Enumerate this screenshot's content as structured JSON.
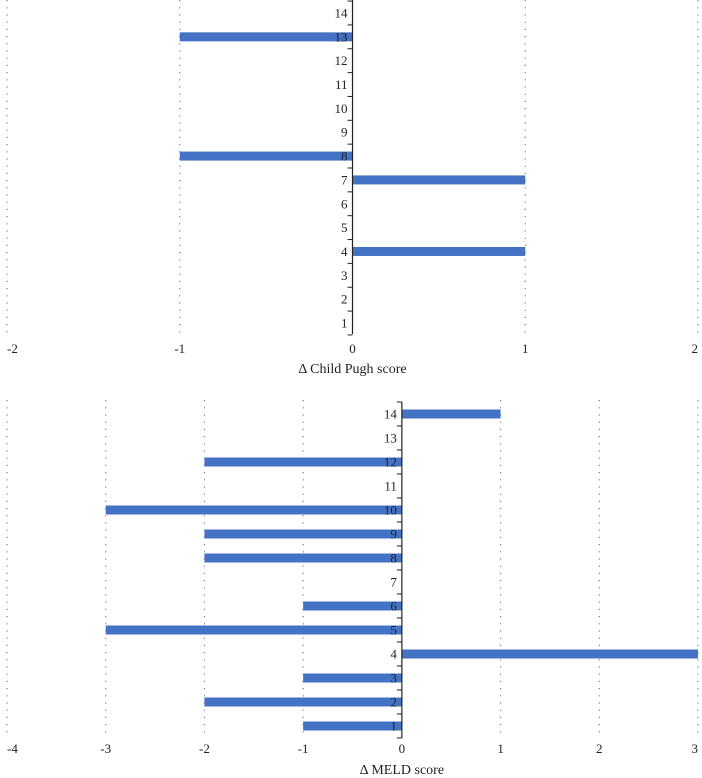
{
  "chart_data": [
    {
      "type": "bar",
      "orientation": "horizontal",
      "title": "",
      "xlabel": "Δ Child Pugh score",
      "ylabel": "",
      "xlim": [
        -2,
        2
      ],
      "x_ticks": [
        -2,
        -1,
        0,
        1,
        2
      ],
      "categories": [
        1,
        2,
        3,
        4,
        5,
        6,
        7,
        8,
        9,
        10,
        11,
        12,
        13,
        14
      ],
      "values": [
        0,
        0,
        0,
        1,
        0,
        0,
        1,
        -1,
        0,
        0,
        0,
        0,
        -1,
        0
      ],
      "grid": "vertical-dotted",
      "legend": "none",
      "bar_color": "#4472C4"
    },
    {
      "type": "bar",
      "orientation": "horizontal",
      "title": "",
      "xlabel": "Δ MELD score",
      "ylabel": "",
      "xlim": [
        -4,
        3
      ],
      "x_ticks": [
        -4,
        -3,
        -2,
        -1,
        0,
        1,
        2,
        3
      ],
      "categories": [
        1,
        2,
        3,
        4,
        5,
        6,
        7,
        8,
        9,
        10,
        11,
        12,
        13,
        14
      ],
      "values": [
        -1,
        -2,
        -1,
        3,
        -3,
        -1,
        0,
        -2,
        -2,
        -3,
        0,
        -2,
        0,
        1
      ],
      "grid": "vertical-dotted",
      "legend": "none",
      "bar_color": "#4472C4"
    }
  ]
}
